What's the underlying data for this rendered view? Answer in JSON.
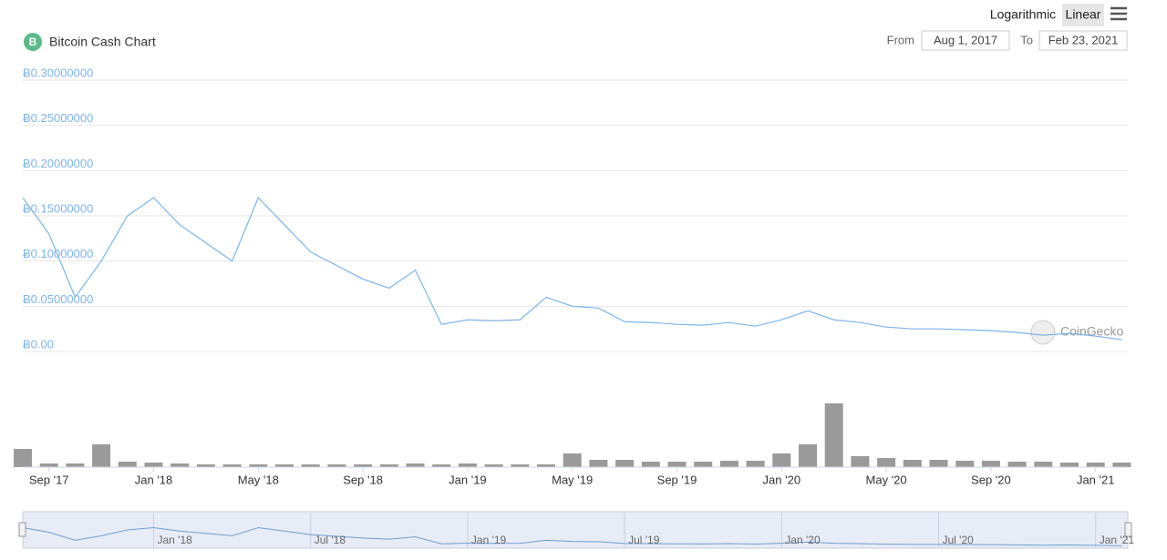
{
  "chart_data": {
    "type": "line",
    "title": "Bitcoin Cash Chart",
    "categories": [
      null,
      "Sep '17",
      null,
      null,
      null,
      "Jan '18",
      null,
      null,
      null,
      "May '18",
      null,
      null,
      null,
      "Sep '18",
      null,
      null,
      null,
      "Jan '19",
      null,
      null,
      null,
      "May '19",
      null,
      null,
      null,
      "Sep '19",
      null,
      null,
      null,
      "Jan '20",
      null,
      null,
      null,
      "May '20",
      null,
      null,
      null,
      "Sep '20",
      null,
      null,
      null,
      "Jan '21",
      null
    ],
    "values": [
      0.17,
      0.13,
      0.06,
      0.1,
      0.15,
      0.17,
      0.14,
      0.12,
      0.1,
      0.17,
      0.14,
      0.11,
      0.095,
      0.08,
      0.07,
      0.09,
      0.03,
      0.035,
      0.034,
      0.035,
      0.06,
      0.05,
      0.048,
      0.033,
      0.032,
      0.03,
      0.029,
      0.032,
      0.028,
      0.035,
      0.045,
      0.035,
      0.032,
      0.027,
      0.025,
      0.025,
      0.024,
      0.023,
      0.021,
      0.018,
      0.02,
      0.017,
      0.013
    ],
    "color": "#7cb5ec",
    "ylim": [
      0,
      0.3
    ],
    "yticks": [
      {
        "value": 0,
        "label": "Ƀ0.00"
      },
      {
        "value": 0.05,
        "label": "Ƀ0.05000000"
      },
      {
        "value": 0.1,
        "label": "Ƀ0.10000000"
      },
      {
        "value": 0.15,
        "label": "Ƀ0.15000000"
      },
      {
        "value": 0.2,
        "label": "Ƀ0.20000000"
      },
      {
        "value": 0.25,
        "label": "Ƀ0.25000000"
      },
      {
        "value": 0.3,
        "label": "Ƀ0.30000000"
      }
    ],
    "grid": true,
    "volume": {
      "values": [
        20,
        4,
        4,
        25,
        6,
        5,
        4,
        3,
        3,
        3,
        3,
        3,
        3,
        3,
        3,
        4,
        3,
        4,
        3,
        3,
        3,
        15,
        8,
        8,
        6,
        6,
        6,
        7,
        7,
        15,
        25,
        70,
        12,
        10,
        8,
        8,
        7,
        7,
        6,
        6,
        5,
        5,
        5
      ],
      "color": "#9a9a9a",
      "vlim": [
        0,
        80
      ]
    },
    "navigator_categories": [
      null,
      null,
      null,
      null,
      null,
      "Jan '18",
      null,
      null,
      null,
      null,
      null,
      "Jul '18",
      null,
      null,
      null,
      null,
      null,
      "Jan '19",
      null,
      null,
      null,
      null,
      null,
      "Jul '19",
      null,
      null,
      null,
      null,
      null,
      "Jan '20",
      null,
      null,
      null,
      null,
      null,
      "Jul '20",
      null,
      null,
      null,
      null,
      null,
      "Jan '21",
      null
    ]
  },
  "controls": {
    "scale_options": [
      "Logarithmic",
      "Linear"
    ],
    "from_label": "From",
    "from": "Aug 1, 2017",
    "to_label": "To",
    "to": "Feb 23, 2021"
  },
  "watermark": "CoinGecko"
}
